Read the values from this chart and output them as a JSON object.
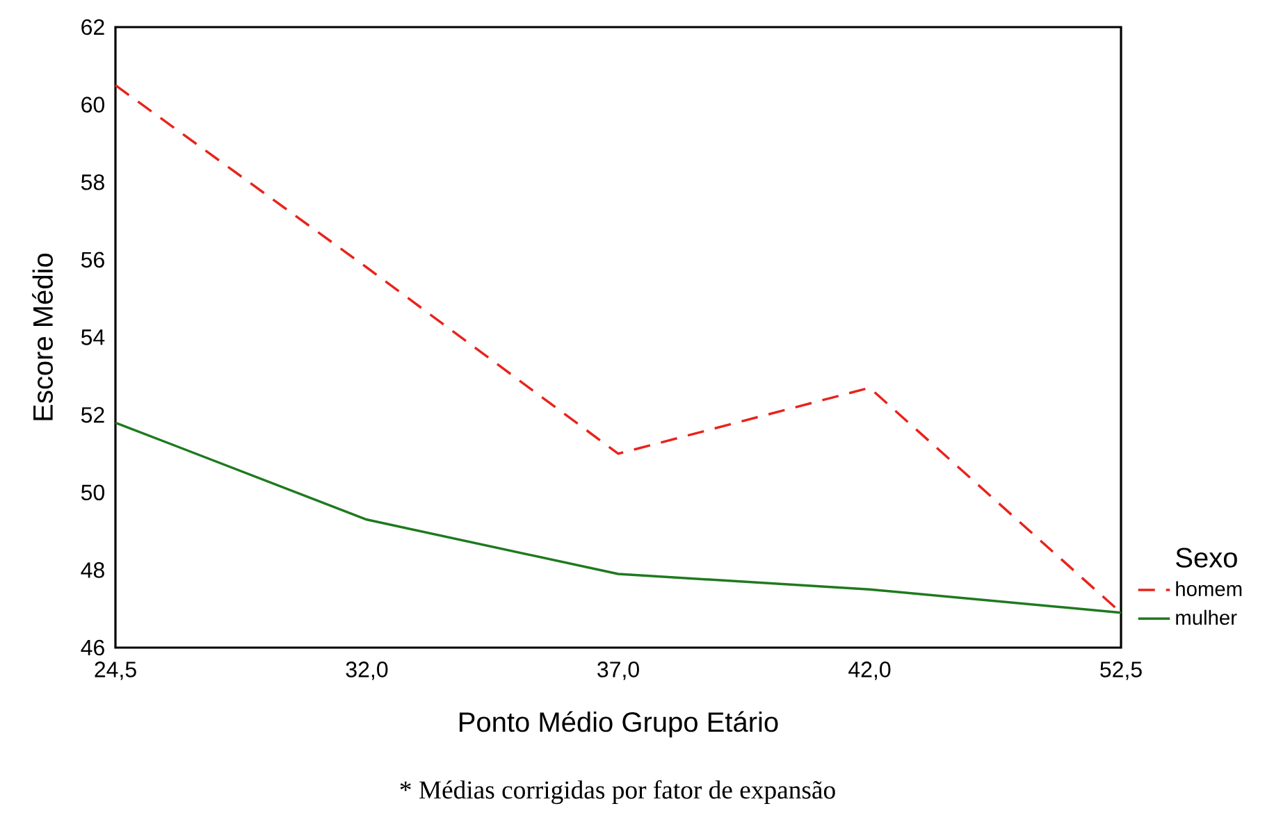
{
  "chart_data": {
    "type": "line",
    "xlabel": "Ponto Médio Grupo Etário",
    "ylabel": "Escore Médio",
    "legend_title": "Sexo",
    "annotations": [
      "* Médias corrigidas por fator de expansão"
    ],
    "categories": [
      "24,5",
      "32,0",
      "37,0",
      "42,0",
      "52,5"
    ],
    "series": [
      {
        "name": "homem",
        "color": "#e8231c",
        "line_style": "dashed",
        "values": [
          60.5,
          55.8,
          51.0,
          52.7,
          46.9
        ]
      },
      {
        "name": "mulher",
        "color": "#1e7a1e",
        "line_style": "solid",
        "values": [
          51.8,
          49.3,
          47.9,
          47.5,
          46.9
        ]
      }
    ],
    "ylim": [
      46,
      62
    ],
    "yticks": [
      46,
      48,
      50,
      52,
      54,
      56,
      58,
      60,
      62
    ],
    "grid": false,
    "legend": "bottom right",
    "marker": "none"
  }
}
